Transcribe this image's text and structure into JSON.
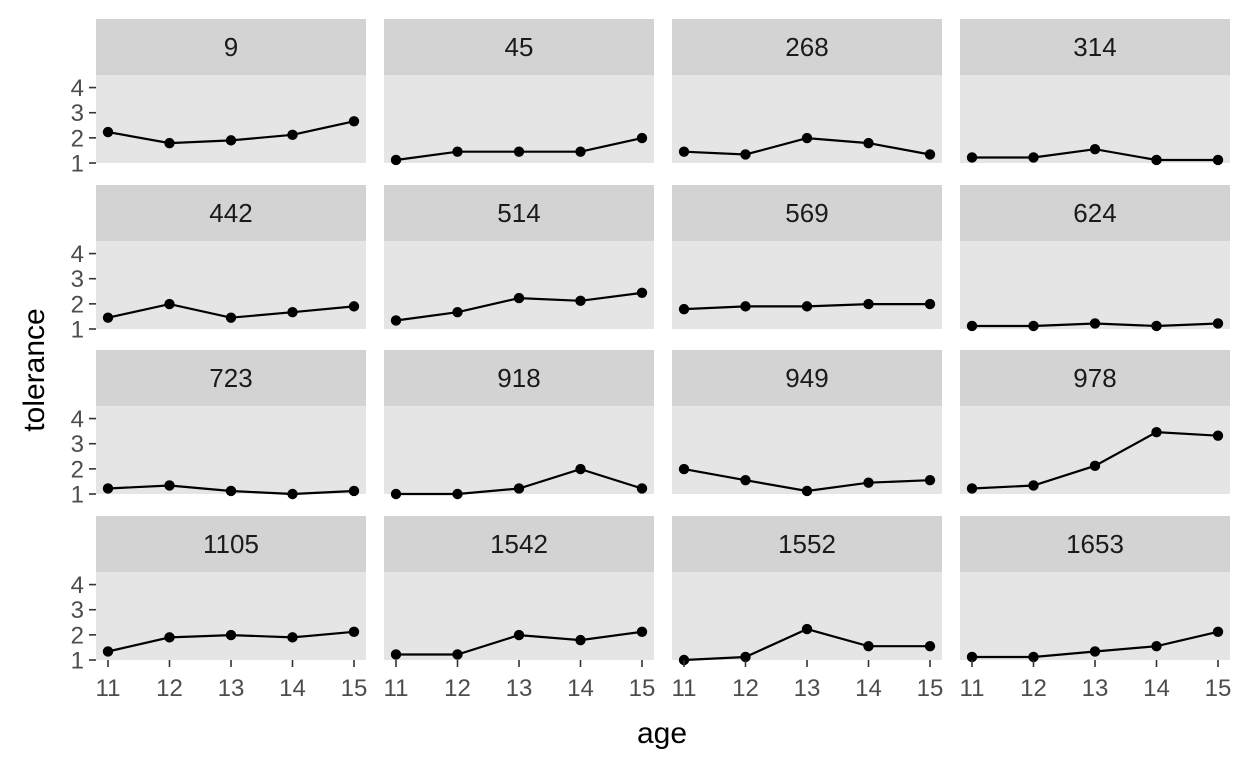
{
  "chart_data": {
    "type": "line",
    "layout": "facet-grid-4x4",
    "xlabel": "age",
    "ylabel": "tolerance",
    "x": [
      11,
      12,
      13,
      14,
      15
    ],
    "xlim": [
      11,
      15
    ],
    "ylim": [
      1,
      4.5
    ],
    "yticks": [
      1,
      2,
      3,
      4
    ],
    "facets": [
      {
        "label": "9",
        "values": [
          2.23,
          1.79,
          1.9,
          2.12,
          2.66
        ]
      },
      {
        "label": "45",
        "values": [
          1.12,
          1.45,
          1.45,
          1.45,
          1.99
        ]
      },
      {
        "label": "268",
        "values": [
          1.45,
          1.34,
          1.99,
          1.79,
          1.34
        ]
      },
      {
        "label": "314",
        "values": [
          1.22,
          1.22,
          1.55,
          1.12,
          1.12
        ]
      },
      {
        "label": "442",
        "values": [
          1.45,
          1.99,
          1.45,
          1.67,
          1.9
        ]
      },
      {
        "label": "514",
        "values": [
          1.34,
          1.67,
          2.23,
          2.12,
          2.44
        ]
      },
      {
        "label": "569",
        "values": [
          1.79,
          1.9,
          1.9,
          1.99,
          1.99
        ]
      },
      {
        "label": "624",
        "values": [
          1.12,
          1.12,
          1.22,
          1.12,
          1.22
        ]
      },
      {
        "label": "723",
        "values": [
          1.22,
          1.34,
          1.12,
          1.0,
          1.12
        ]
      },
      {
        "label": "918",
        "values": [
          1.0,
          1.0,
          1.22,
          1.99,
          1.22
        ]
      },
      {
        "label": "949",
        "values": [
          1.99,
          1.55,
          1.12,
          1.45,
          1.55
        ]
      },
      {
        "label": "978",
        "values": [
          1.22,
          1.34,
          2.12,
          3.46,
          3.32
        ]
      },
      {
        "label": "1105",
        "values": [
          1.34,
          1.9,
          1.99,
          1.9,
          2.12
        ]
      },
      {
        "label": "1542",
        "values": [
          1.22,
          1.22,
          1.99,
          1.79,
          2.12
        ]
      },
      {
        "label": "1552",
        "values": [
          1.0,
          1.12,
          2.23,
          1.55,
          1.55
        ]
      },
      {
        "label": "1653",
        "values": [
          1.12,
          1.12,
          1.34,
          1.55,
          2.12
        ]
      }
    ],
    "colors": {
      "panel_bg": "#e5e5e5",
      "strip_bg": "#d3d3d3",
      "line": "#000000",
      "point": "#000000",
      "tick": "#333333"
    },
    "grid": false,
    "legend": "none"
  }
}
